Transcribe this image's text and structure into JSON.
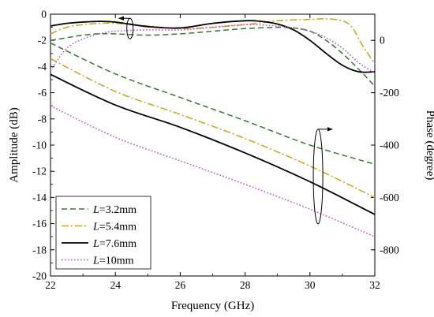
{
  "chart_data": {
    "type": "line",
    "xlabel": "Frequency (GHz)",
    "ylabel": "Amplitude (dB)",
    "y2label": "Phase (degree)",
    "xlim": [
      22,
      32
    ],
    "ylim": [
      -20,
      0
    ],
    "y2lim": [
      -900,
      100
    ],
    "x_ticks": [
      22,
      24,
      26,
      28,
      30,
      32
    ],
    "y_ticks": [
      0,
      -2,
      -4,
      -6,
      -8,
      -10,
      -12,
      -14,
      -16,
      -18,
      -20
    ],
    "y2_ticks": [
      0,
      -200,
      -400,
      -600,
      -800
    ],
    "legend_position": "bottom-left",
    "legend_prefix": "L",
    "series": [
      {
        "name": "=3.2mm",
        "color": "#2e7d32",
        "dash": "dashed",
        "amplitude": {
          "x": [
            22,
            22.5,
            23,
            23.5,
            24,
            25,
            26,
            27,
            28,
            29,
            29.5,
            30,
            30.5,
            31,
            31.5,
            32
          ],
          "y": [
            -2.0,
            -1.8,
            -1.6,
            -1.5,
            -1.5,
            -1.6,
            -1.5,
            -1.3,
            -1.1,
            -1.0,
            -1.05,
            -1.3,
            -2.0,
            -3.0,
            -4.2,
            -5.5
          ]
        },
        "phase": {
          "x": [
            22,
            24,
            26,
            28,
            30,
            32
          ],
          "y": [
            -10,
            -128,
            -218,
            -307,
            -400,
            -473
          ]
        }
      },
      {
        "name": "=5.4mm",
        "color": "#d4a017",
        "dash": "dashdot",
        "amplitude": {
          "x": [
            22,
            22.5,
            23,
            23.5,
            24,
            25,
            26,
            27,
            28,
            29,
            30,
            30.5,
            31,
            31.3,
            31.6,
            32
          ],
          "y": [
            -1.5,
            -1.0,
            -0.8,
            -0.7,
            -0.7,
            -0.9,
            -1.1,
            -1.0,
            -0.8,
            -0.5,
            -0.4,
            -0.35,
            -0.5,
            -1.0,
            -2.3,
            -3.8
          ]
        },
        "phase": {
          "x": [
            22,
            24,
            26,
            28,
            30,
            32
          ],
          "y": [
            -70,
            -195,
            -283,
            -375,
            -480,
            -600
          ]
        }
      },
      {
        "name": "=7.6mm",
        "color": "#000000",
        "dash": "solid",
        "amplitude": {
          "x": [
            22,
            22.5,
            23,
            23.5,
            24,
            25,
            26,
            27,
            28,
            28.5,
            29,
            29.5,
            30,
            30.5,
            31,
            31.5,
            32
          ],
          "y": [
            -0.9,
            -0.7,
            -0.6,
            -0.55,
            -0.6,
            -0.95,
            -1.05,
            -0.7,
            -0.5,
            -0.55,
            -0.75,
            -1.2,
            -2.0,
            -3.0,
            -3.9,
            -4.4,
            -4.4
          ]
        },
        "phase": {
          "x": [
            22,
            24,
            26,
            28,
            30,
            32
          ],
          "y": [
            -130,
            -247,
            -332,
            -430,
            -540,
            -665
          ]
        }
      },
      {
        "name": "=10mm",
        "color": "#c64ac6",
        "dash": "dotted",
        "amplitude": {
          "x": [
            22,
            22.5,
            23,
            23.5,
            24,
            25,
            26,
            27,
            28,
            29,
            29.5,
            30,
            30.5,
            31,
            31.5,
            32
          ],
          "y": [
            -4.3,
            -2.6,
            -1.9,
            -1.5,
            -1.3,
            -1.2,
            -1.2,
            -1.0,
            -0.8,
            -0.9,
            -1.05,
            -1.3,
            -1.8,
            -2.6,
            -3.7,
            -4.5
          ]
        },
        "phase": {
          "x": [
            22,
            24,
            26,
            28,
            30,
            32
          ],
          "y": [
            -250,
            -370,
            -460,
            -550,
            -645,
            -750
          ]
        }
      }
    ]
  }
}
